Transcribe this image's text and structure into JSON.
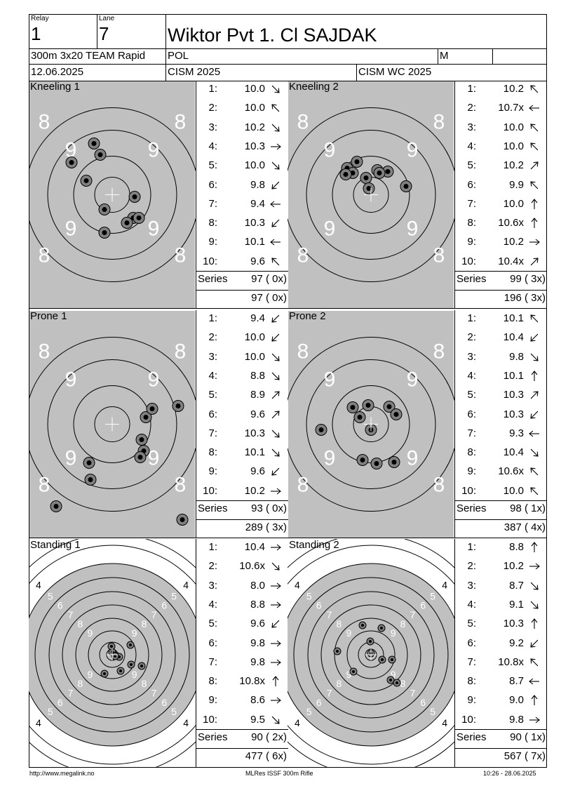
{
  "header": {
    "relay_label": "Relay",
    "relay_value": "1",
    "lane_label": "Lane",
    "lane_value": "7",
    "shooter_name": "Wiktor Pvt 1. Cl SAJDAK",
    "event": "300m 3x20 TEAM Rapid",
    "nation": "POL",
    "gender": "M",
    "date": "12.06.2025",
    "competition": "CISM 2025",
    "championship": "CISM WC 2025"
  },
  "series_label": "Series",
  "panels": [
    {
      "title": "Kneeling 1",
      "target": "prone",
      "shots": [
        {
          "n": "1:",
          "v": "10.0",
          "dir": "se"
        },
        {
          "n": "2:",
          "v": "10.0",
          "dir": "nw"
        },
        {
          "n": "3:",
          "v": "10.2",
          "dir": "se"
        },
        {
          "n": "4:",
          "v": "10.3",
          "dir": "e"
        },
        {
          "n": "5:",
          "v": "10.0",
          "dir": "se"
        },
        {
          "n": "6:",
          "v": "9.8",
          "dir": "sw"
        },
        {
          "n": "7:",
          "v": "9.4",
          "dir": "w"
        },
        {
          "n": "8:",
          "v": "10.3",
          "dir": "sw"
        },
        {
          "n": "9:",
          "v": "10.1",
          "dir": "w"
        },
        {
          "n": "10:",
          "v": "9.6",
          "dir": "nw"
        }
      ],
      "series": "97 ( 0x)",
      "total": "97 ( 0x)"
    },
    {
      "title": "Kneeling 2",
      "target": "prone",
      "shots": [
        {
          "n": "1:",
          "v": "10.2",
          "dir": "nw"
        },
        {
          "n": "2:",
          "v": "10.7x",
          "dir": "w"
        },
        {
          "n": "3:",
          "v": "10.0",
          "dir": "nw"
        },
        {
          "n": "4:",
          "v": "10.0",
          "dir": "nw"
        },
        {
          "n": "5:",
          "v": "10.2",
          "dir": "ne"
        },
        {
          "n": "6:",
          "v": "9.9",
          "dir": "nw"
        },
        {
          "n": "7:",
          "v": "10.0",
          "dir": "n"
        },
        {
          "n": "8:",
          "v": "10.6x",
          "dir": "n"
        },
        {
          "n": "9:",
          "v": "10.2",
          "dir": "e"
        },
        {
          "n": "10:",
          "v": "10.4x",
          "dir": "ne"
        }
      ],
      "series": "99 ( 3x)",
      "total": "196 ( 3x)"
    },
    {
      "title": "Prone 1",
      "target": "prone",
      "shots": [
        {
          "n": "1:",
          "v": "9.4",
          "dir": "sw"
        },
        {
          "n": "2:",
          "v": "10.0",
          "dir": "sw"
        },
        {
          "n": "3:",
          "v": "10.0",
          "dir": "se"
        },
        {
          "n": "4:",
          "v": "8.8",
          "dir": "se"
        },
        {
          "n": "5:",
          "v": "8.9",
          "dir": "ne"
        },
        {
          "n": "6:",
          "v": "9.6",
          "dir": "ne"
        },
        {
          "n": "7:",
          "v": "10.3",
          "dir": "se"
        },
        {
          "n": "8:",
          "v": "10.1",
          "dir": "se"
        },
        {
          "n": "9:",
          "v": "9.6",
          "dir": "sw"
        },
        {
          "n": "10:",
          "v": "10.2",
          "dir": "e"
        }
      ],
      "series": "93 ( 0x)",
      "total": "289 ( 3x)"
    },
    {
      "title": "Prone 2",
      "target": "prone",
      "shots": [
        {
          "n": "1:",
          "v": "10.1",
          "dir": "nw"
        },
        {
          "n": "2:",
          "v": "10.4",
          "dir": "sw"
        },
        {
          "n": "3:",
          "v": "9.8",
          "dir": "se"
        },
        {
          "n": "4:",
          "v": "10.1",
          "dir": "n"
        },
        {
          "n": "5:",
          "v": "10.3",
          "dir": "ne"
        },
        {
          "n": "6:",
          "v": "10.3",
          "dir": "sw"
        },
        {
          "n": "7:",
          "v": "9.3",
          "dir": "w"
        },
        {
          "n": "8:",
          "v": "10.4",
          "dir": "se"
        },
        {
          "n": "9:",
          "v": "10.6x",
          "dir": "nw"
        },
        {
          "n": "10:",
          "v": "10.0",
          "dir": "nw"
        }
      ],
      "series": "98 ( 1x)",
      "total": "387 ( 4x)"
    },
    {
      "title": "Standing 1",
      "target": "standing",
      "shots": [
        {
          "n": "1:",
          "v": "10.4",
          "dir": "e"
        },
        {
          "n": "2:",
          "v": "10.6x",
          "dir": "se"
        },
        {
          "n": "3:",
          "v": "8.0",
          "dir": "e"
        },
        {
          "n": "4:",
          "v": "8.8",
          "dir": "e"
        },
        {
          "n": "5:",
          "v": "9.6",
          "dir": "sw"
        },
        {
          "n": "6:",
          "v": "9.8",
          "dir": "e"
        },
        {
          "n": "7:",
          "v": "9.8",
          "dir": "e"
        },
        {
          "n": "8:",
          "v": "10.8x",
          "dir": "n"
        },
        {
          "n": "9:",
          "v": "8.6",
          "dir": "e"
        },
        {
          "n": "10:",
          "v": "9.5",
          "dir": "se"
        }
      ],
      "series": "90 ( 2x)",
      "total": "477 ( 6x)"
    },
    {
      "title": "Standing 2",
      "target": "standing",
      "shots": [
        {
          "n": "1:",
          "v": "8.8",
          "dir": "n"
        },
        {
          "n": "2:",
          "v": "10.2",
          "dir": "e"
        },
        {
          "n": "3:",
          "v": "8.7",
          "dir": "se"
        },
        {
          "n": "4:",
          "v": "9.1",
          "dir": "se"
        },
        {
          "n": "5:",
          "v": "10.3",
          "dir": "n"
        },
        {
          "n": "6:",
          "v": "9.2",
          "dir": "sw"
        },
        {
          "n": "7:",
          "v": "10.8x",
          "dir": "nw"
        },
        {
          "n": "8:",
          "v": "8.7",
          "dir": "w"
        },
        {
          "n": "9:",
          "v": "9.0",
          "dir": "n"
        },
        {
          "n": "10:",
          "v": "9.8",
          "dir": "e"
        }
      ],
      "series": "90 ( 1x)",
      "total": "567 ( 7x)"
    }
  ],
  "footer": {
    "left": "http://www.megalink.no",
    "center": "MLRes ISSF 300m Rifle",
    "right": "10:26 - 28.06.2025"
  },
  "colors": {
    "target_bg": "#c0c0c0",
    "ring": "#000000",
    "ring_label": "#ffffff"
  }
}
